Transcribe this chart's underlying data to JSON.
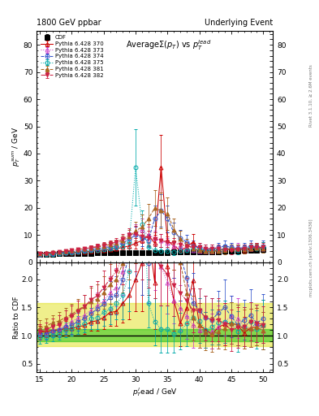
{
  "title_left": "1800 GeV ppbar",
  "title_right": "Underlying Event",
  "ylabel_main": "p_T^{sum} / GeV",
  "ylabel_ratio": "Ratio to CDF",
  "xlabel": "p_T^{l}ead / GeV",
  "right_label_top": "Rivet 3.1.10, ≥ 2.6M events",
  "right_label_bottom": "mcplots.cern.ch [arXiv:1306.3436]",
  "ylim_main": [
    0,
    85
  ],
  "ylim_ratio": [
    0.35,
    2.3
  ],
  "xlim": [
    14.5,
    51.5
  ],
  "yticks_main": [
    0,
    10,
    20,
    30,
    40,
    50,
    60,
    70,
    80
  ],
  "yticks_ratio": [
    0.5,
    1.0,
    1.5,
    2.0
  ],
  "xtick_locs": [
    15,
    20,
    25,
    30,
    35,
    40,
    45,
    50
  ],
  "xtick_labels": [
    "15",
    "20",
    "25",
    "30",
    "35",
    "40",
    "45",
    "50"
  ],
  "series": [
    {
      "label": "CDF",
      "color": "#000000",
      "marker": "s",
      "markersize": 4,
      "linestyle": "none",
      "filled": true,
      "x": [
        15,
        16,
        17,
        18,
        19,
        20,
        21,
        22,
        23,
        24,
        25,
        26,
        27,
        28,
        29,
        30,
        31,
        32,
        33,
        34,
        35,
        36,
        37,
        38,
        39,
        40,
        41,
        42,
        43,
        44,
        45,
        46,
        47,
        48,
        49,
        50
      ],
      "y": [
        2.9,
        3.0,
        3.0,
        3.1,
        3.1,
        3.2,
        3.2,
        3.3,
        3.3,
        3.4,
        3.4,
        3.4,
        3.5,
        3.5,
        3.5,
        3.5,
        3.5,
        3.5,
        3.6,
        3.6,
        3.6,
        3.7,
        3.7,
        3.7,
        3.8,
        3.8,
        3.8,
        3.9,
        3.9,
        4.0,
        4.1,
        4.2,
        4.3,
        4.4,
        4.5,
        4.6
      ],
      "yerr": [
        0.15,
        0.15,
        0.15,
        0.15,
        0.15,
        0.15,
        0.15,
        0.15,
        0.15,
        0.15,
        0.15,
        0.15,
        0.15,
        0.15,
        0.15,
        0.15,
        0.15,
        0.15,
        0.15,
        0.15,
        0.15,
        0.15,
        0.15,
        0.15,
        0.15,
        0.15,
        0.15,
        0.15,
        0.15,
        0.15,
        0.2,
        0.2,
        0.2,
        0.2,
        0.2,
        0.2
      ]
    },
    {
      "label": "Pythia 6.428 370",
      "color": "#cc0000",
      "marker": "^",
      "markersize": 3.5,
      "linestyle": "-",
      "filled": false,
      "x": [
        15,
        16,
        17,
        18,
        19,
        20,
        21,
        22,
        23,
        24,
        25,
        26,
        27,
        28,
        29,
        30,
        31,
        32,
        33,
        34,
        35,
        36,
        37,
        38,
        39,
        40,
        41,
        42,
        43,
        44,
        45,
        46,
        47,
        48,
        49,
        50
      ],
      "y": [
        3.1,
        3.2,
        3.3,
        3.4,
        3.5,
        3.6,
        3.7,
        3.9,
        4.1,
        4.3,
        4.5,
        4.8,
        5.0,
        5.5,
        6.0,
        7.0,
        8.0,
        10.0,
        7.0,
        35.0,
        8.0,
        6.0,
        4.5,
        5.5,
        7.5,
        4.5,
        4.2,
        4.0,
        4.5,
        4.8,
        5.0,
        5.0,
        4.5,
        5.0,
        5.2,
        5.5
      ],
      "yerr": [
        0.3,
        0.3,
        0.3,
        0.3,
        0.4,
        0.4,
        0.4,
        0.5,
        0.5,
        0.6,
        0.7,
        0.8,
        0.9,
        1.2,
        1.5,
        2.0,
        3.0,
        4.0,
        3.0,
        12.0,
        3.0,
        2.0,
        1.5,
        2.0,
        3.0,
        1.5,
        1.2,
        1.0,
        1.2,
        1.5,
        1.5,
        1.5,
        1.2,
        1.5,
        1.5,
        2.0
      ]
    },
    {
      "label": "Pythia 6.428 373",
      "color": "#cc44cc",
      "marker": "^",
      "markersize": 3.5,
      "linestyle": ":",
      "filled": false,
      "x": [
        15,
        16,
        17,
        18,
        19,
        20,
        21,
        22,
        23,
        24,
        25,
        26,
        27,
        28,
        29,
        30,
        31,
        32,
        33,
        34,
        35,
        36,
        37,
        38,
        39,
        40,
        41,
        42,
        43,
        44,
        45,
        46,
        47,
        48,
        49,
        50
      ],
      "y": [
        3.0,
        3.1,
        3.3,
        3.5,
        3.7,
        4.0,
        4.2,
        4.5,
        4.8,
        5.2,
        5.5,
        6.0,
        6.5,
        7.5,
        9.0,
        11.0,
        12.0,
        10.0,
        9.0,
        8.0,
        7.0,
        6.0,
        5.5,
        5.0,
        4.5,
        4.2,
        4.0,
        4.2,
        4.5,
        5.0,
        5.5,
        5.5,
        5.0,
        5.0,
        5.5,
        5.0
      ],
      "yerr": [
        0.3,
        0.3,
        0.4,
        0.4,
        0.4,
        0.5,
        0.5,
        0.6,
        0.7,
        0.8,
        0.9,
        1.0,
        1.2,
        1.5,
        2.0,
        3.0,
        4.0,
        3.0,
        2.5,
        2.5,
        2.0,
        1.5,
        1.5,
        1.5,
        1.5,
        1.2,
        1.0,
        1.2,
        1.5,
        1.5,
        1.5,
        1.5,
        1.5,
        1.5,
        1.5,
        1.5
      ]
    },
    {
      "label": "Pythia 6.428 374",
      "color": "#3355cc",
      "marker": "o",
      "markersize": 3.5,
      "linestyle": "--",
      "filled": false,
      "x": [
        15,
        16,
        17,
        18,
        19,
        20,
        21,
        22,
        23,
        24,
        25,
        26,
        27,
        28,
        29,
        30,
        31,
        32,
        33,
        34,
        35,
        36,
        37,
        38,
        39,
        40,
        41,
        42,
        43,
        44,
        45,
        46,
        47,
        48,
        49,
        50
      ],
      "y": [
        3.0,
        3.1,
        3.2,
        3.4,
        3.6,
        3.8,
        4.0,
        4.3,
        4.6,
        5.0,
        5.3,
        5.7,
        6.0,
        7.0,
        8.5,
        10.0,
        9.0,
        8.0,
        16.0,
        19.0,
        16.0,
        11.0,
        9.0,
        7.5,
        6.0,
        5.5,
        5.0,
        5.0,
        5.5,
        6.0,
        5.5,
        5.0,
        5.5,
        6.0,
        5.5,
        6.0
      ],
      "yerr": [
        0.3,
        0.3,
        0.3,
        0.4,
        0.4,
        0.5,
        0.5,
        0.6,
        0.7,
        0.8,
        0.9,
        1.0,
        1.2,
        1.5,
        2.0,
        3.0,
        3.0,
        2.5,
        5.0,
        6.0,
        5.0,
        3.5,
        3.0,
        2.5,
        2.0,
        1.5,
        1.5,
        1.5,
        1.5,
        2.0,
        1.5,
        1.5,
        1.5,
        2.0,
        1.5,
        2.0
      ]
    },
    {
      "label": "Pythia 6.428 375",
      "color": "#00aaaa",
      "marker": "o",
      "markersize": 3.5,
      "linestyle": ":",
      "filled": false,
      "x": [
        15,
        16,
        17,
        18,
        19,
        20,
        21,
        22,
        23,
        24,
        25,
        26,
        27,
        28,
        29,
        30,
        31,
        32,
        33,
        34,
        35,
        36,
        37,
        38,
        39,
        40,
        41,
        42,
        43,
        44,
        45,
        46,
        47,
        48,
        49,
        50
      ],
      "y": [
        2.8,
        2.9,
        3.0,
        3.2,
        3.4,
        3.6,
        3.8,
        4.0,
        4.3,
        4.5,
        4.8,
        5.0,
        5.5,
        6.0,
        7.5,
        35.0,
        14.0,
        5.5,
        4.5,
        4.0,
        4.0,
        3.8,
        4.0,
        4.5,
        5.0,
        4.8,
        4.2,
        4.5,
        4.8,
        5.0,
        5.0,
        4.5,
        5.0,
        5.5,
        5.0,
        5.5
      ],
      "yerr": [
        0.3,
        0.3,
        0.3,
        0.3,
        0.4,
        0.4,
        0.5,
        0.5,
        0.6,
        0.7,
        0.8,
        0.9,
        1.0,
        1.5,
        2.5,
        14.0,
        5.0,
        1.5,
        1.5,
        1.5,
        1.5,
        1.2,
        1.2,
        1.5,
        1.5,
        1.5,
        1.2,
        1.2,
        1.5,
        1.5,
        1.5,
        1.5,
        1.5,
        1.5,
        1.5,
        2.0
      ]
    },
    {
      "label": "Pythia 6.428 381",
      "color": "#aa6622",
      "marker": "^",
      "markersize": 3.5,
      "linestyle": "--",
      "filled": true,
      "x": [
        15,
        16,
        17,
        18,
        19,
        20,
        21,
        22,
        23,
        24,
        25,
        26,
        27,
        28,
        29,
        30,
        31,
        32,
        33,
        34,
        35,
        36,
        37,
        38,
        39,
        40,
        41,
        42,
        43,
        44,
        45,
        46,
        47,
        48,
        49,
        50
      ],
      "y": [
        3.3,
        3.5,
        3.7,
        3.9,
        4.1,
        4.4,
        4.7,
        5.0,
        5.3,
        5.6,
        6.0,
        6.5,
        7.0,
        8.0,
        9.5,
        11.5,
        13.0,
        16.0,
        20.0,
        19.0,
        18.0,
        12.0,
        8.5,
        6.5,
        5.0,
        4.5,
        4.0,
        4.0,
        4.2,
        4.5,
        5.0,
        5.0,
        4.8,
        5.0,
        5.2,
        5.0
      ],
      "yerr": [
        0.4,
        0.4,
        0.4,
        0.5,
        0.5,
        0.6,
        0.6,
        0.7,
        0.8,
        0.9,
        1.0,
        1.2,
        1.4,
        1.8,
        2.5,
        3.5,
        4.5,
        5.5,
        6.5,
        6.5,
        6.0,
        4.0,
        3.0,
        2.0,
        1.5,
        1.5,
        1.2,
        1.2,
        1.2,
        1.5,
        1.5,
        1.5,
        1.5,
        1.5,
        1.5,
        1.5
      ]
    },
    {
      "label": "Pythia 6.428 382",
      "color": "#cc2244",
      "marker": "v",
      "markersize": 3.5,
      "linestyle": "-.",
      "filled": true,
      "x": [
        15,
        16,
        17,
        18,
        19,
        20,
        21,
        22,
        23,
        24,
        25,
        26,
        27,
        28,
        29,
        30,
        31,
        32,
        33,
        34,
        35,
        36,
        37,
        38,
        39,
        40,
        41,
        42,
        43,
        44,
        45,
        46,
        47,
        48,
        49,
        50
      ],
      "y": [
        3.1,
        3.3,
        3.5,
        3.7,
        4.0,
        4.3,
        4.6,
        5.0,
        5.4,
        5.8,
        6.3,
        6.8,
        7.5,
        8.5,
        10.0,
        10.5,
        9.5,
        9.0,
        8.5,
        8.0,
        7.5,
        7.0,
        6.5,
        6.0,
        5.5,
        5.5,
        5.0,
        5.0,
        5.0,
        4.8,
        4.5,
        4.8,
        5.0,
        5.5,
        5.5,
        5.5
      ],
      "yerr": [
        0.4,
        0.4,
        0.4,
        0.5,
        0.5,
        0.6,
        0.6,
        0.7,
        0.8,
        0.9,
        1.0,
        1.2,
        1.5,
        1.8,
        2.5,
        3.0,
        2.5,
        2.5,
        2.5,
        2.5,
        2.0,
        2.0,
        2.0,
        1.5,
        1.5,
        1.5,
        1.5,
        1.5,
        1.5,
        1.5,
        1.5,
        1.5,
        1.5,
        1.5,
        1.5,
        1.5
      ]
    }
  ],
  "band_yellow_low": 0.82,
  "band_yellow_high": 1.58,
  "band_green_low": 0.9,
  "band_green_high": 1.12,
  "band_yellow_color": "#dddd00",
  "band_green_color": "#00bb00",
  "band_alpha": 0.45,
  "background_color": "#ffffff"
}
